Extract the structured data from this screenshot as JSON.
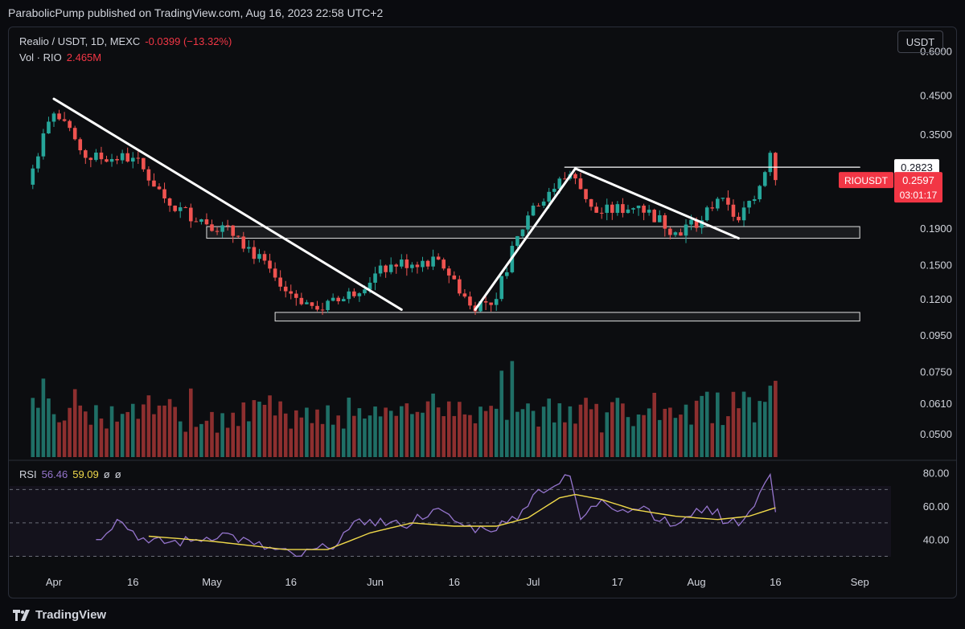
{
  "header": {
    "publisher_line": "ParabolicPump published on TradingView.com, Aug 16, 2023 22:58 UTC+2"
  },
  "legend": {
    "symbol": "Realio / USDT, 1D, MEXC",
    "change": "-0.0399 (−13.32%)",
    "volume_label": "Vol · RIO",
    "volume_value": "2.465M"
  },
  "currency_button": "USDT",
  "rsi_legend": {
    "label": "RSI",
    "rsi_value": "56.46",
    "ma_value": "59.09",
    "extra1": "ø",
    "extra2": "ø"
  },
  "footer": {
    "brand": "TradingView",
    "logo_icon": "tradingview-logo-icon"
  },
  "colors": {
    "up": "#26a69a",
    "down": "#ef5350",
    "vol_up": "#1f6f66",
    "vol_down": "#8d2f2f",
    "rsi": "#9575cd",
    "rsi_ma": "#f0d94a",
    "bg": "#0c0d10"
  },
  "chart_data": [
    {
      "type": "candlestick",
      "title": "Realio / USDT, 1D, MEXC",
      "yscale": "log",
      "ylim": [
        0.043,
        0.7
      ],
      "y_ticks": [
        0.6,
        0.45,
        0.35,
        0.19,
        0.15,
        0.12,
        0.095,
        0.075,
        0.061,
        0.05
      ],
      "y_tick_labels": [
        "0.6000",
        "0.4500",
        "0.3500",
        "0.1900",
        "0.1500",
        "0.1200",
        "0.0950",
        "0.0750",
        "0.0610",
        "0.0500"
      ],
      "x_labels": [
        "Apr",
        "16",
        "May",
        "16",
        "Jun",
        "16",
        "Jul",
        "17",
        "Aug",
        "16",
        "Sep"
      ],
      "x_label_days": [
        0,
        15,
        30,
        45,
        61,
        76,
        91,
        107,
        122,
        137,
        153
      ],
      "first_candle_day": -4,
      "last_candle_day": 137,
      "key_closes": [
        {
          "day": -4,
          "close": 0.28
        },
        {
          "day": 0,
          "close": 0.4
        },
        {
          "day": 6,
          "close": 0.3
        },
        {
          "day": 15,
          "close": 0.3
        },
        {
          "day": 22,
          "close": 0.22
        },
        {
          "day": 35,
          "close": 0.18
        },
        {
          "day": 43,
          "close": 0.13
        },
        {
          "day": 50,
          "close": 0.112
        },
        {
          "day": 55,
          "close": 0.12
        },
        {
          "day": 64,
          "close": 0.15
        },
        {
          "day": 73,
          "close": 0.155
        },
        {
          "day": 79,
          "close": 0.115
        },
        {
          "day": 84,
          "close": 0.12
        },
        {
          "day": 91,
          "close": 0.22
        },
        {
          "day": 98,
          "close": 0.27
        },
        {
          "day": 103,
          "close": 0.21
        },
        {
          "day": 111,
          "close": 0.22
        },
        {
          "day": 118,
          "close": 0.185
        },
        {
          "day": 123,
          "close": 0.2
        },
        {
          "day": 126,
          "close": 0.23
        },
        {
          "day": 130,
          "close": 0.2
        },
        {
          "day": 134,
          "close": 0.25
        },
        {
          "day": 136,
          "close": 0.31
        },
        {
          "day": 137,
          "close": 0.2597
        }
      ],
      "last_price": {
        "label": "RIOUSDT",
        "price": "0.2597",
        "countdown": "03:01:17",
        "value": 0.2597
      },
      "level_label": {
        "price": "0.2823",
        "value": 0.2823
      },
      "support_zones": [
        {
          "from": 0.178,
          "to": 0.192,
          "start_day": 29,
          "end_day": 153
        },
        {
          "from": 0.104,
          "to": 0.11,
          "start_day": 42,
          "end_day": 153
        }
      ],
      "drawn_trendlines": [
        {
          "from": {
            "day": 0,
            "price": 0.44
          },
          "to": {
            "day": 66,
            "price": 0.112
          }
        },
        {
          "from": {
            "day": 80,
            "price": 0.112
          },
          "to": {
            "day": 99,
            "price": 0.28
          }
        },
        {
          "from": {
            "day": 99,
            "price": 0.28
          },
          "to": {
            "day": 130,
            "price": 0.178
          }
        },
        {
          "from": {
            "day": 97,
            "price": 0.2823
          },
          "to": {
            "day": 153,
            "price": 0.2823
          }
        }
      ],
      "volume": {
        "label": "Vol · RIO",
        "last": "2.465M"
      }
    },
    {
      "type": "line",
      "title": "RSI",
      "ylim": [
        23,
        87
      ],
      "y_ticks": [
        80,
        60,
        40
      ],
      "y_tick_labels": [
        "80.00",
        "60.00",
        "40.00"
      ],
      "bands": [
        70,
        50,
        30
      ],
      "series": [
        {
          "name": "RSI",
          "key_points": [
            [
              8,
              40
            ],
            [
              12,
              52
            ],
            [
              18,
              38
            ],
            [
              26,
              39
            ],
            [
              32,
              44
            ],
            [
              38,
              37
            ],
            [
              46,
              30
            ],
            [
              52,
              35
            ],
            [
              56,
              46
            ],
            [
              60,
              52
            ],
            [
              66,
              48
            ],
            [
              72,
              58
            ],
            [
              78,
              48
            ],
            [
              82,
              46
            ],
            [
              86,
              50
            ],
            [
              89,
              58
            ],
            [
              92,
              70
            ],
            [
              95,
              72
            ],
            [
              98,
              78
            ],
            [
              100,
              52
            ],
            [
              104,
              64
            ],
            [
              108,
              58
            ],
            [
              112,
              60
            ],
            [
              117,
              48
            ],
            [
              121,
              54
            ],
            [
              124,
              60
            ],
            [
              128,
              50
            ],
            [
              131,
              52
            ],
            [
              134,
              68
            ],
            [
              136,
              79
            ],
            [
              137,
              56.46
            ]
          ]
        },
        {
          "name": "RSI MA",
          "key_points": [
            [
              18,
              42
            ],
            [
              30,
              39
            ],
            [
              44,
              34
            ],
            [
              52,
              34
            ],
            [
              60,
              44
            ],
            [
              68,
              50
            ],
            [
              76,
              48
            ],
            [
              84,
              48
            ],
            [
              90,
              53
            ],
            [
              96,
              65
            ],
            [
              99,
              67
            ],
            [
              104,
              64
            ],
            [
              110,
              58
            ],
            [
              118,
              54
            ],
            [
              126,
              52
            ],
            [
              132,
              54
            ],
            [
              137,
              59.09
            ]
          ]
        }
      ]
    }
  ]
}
